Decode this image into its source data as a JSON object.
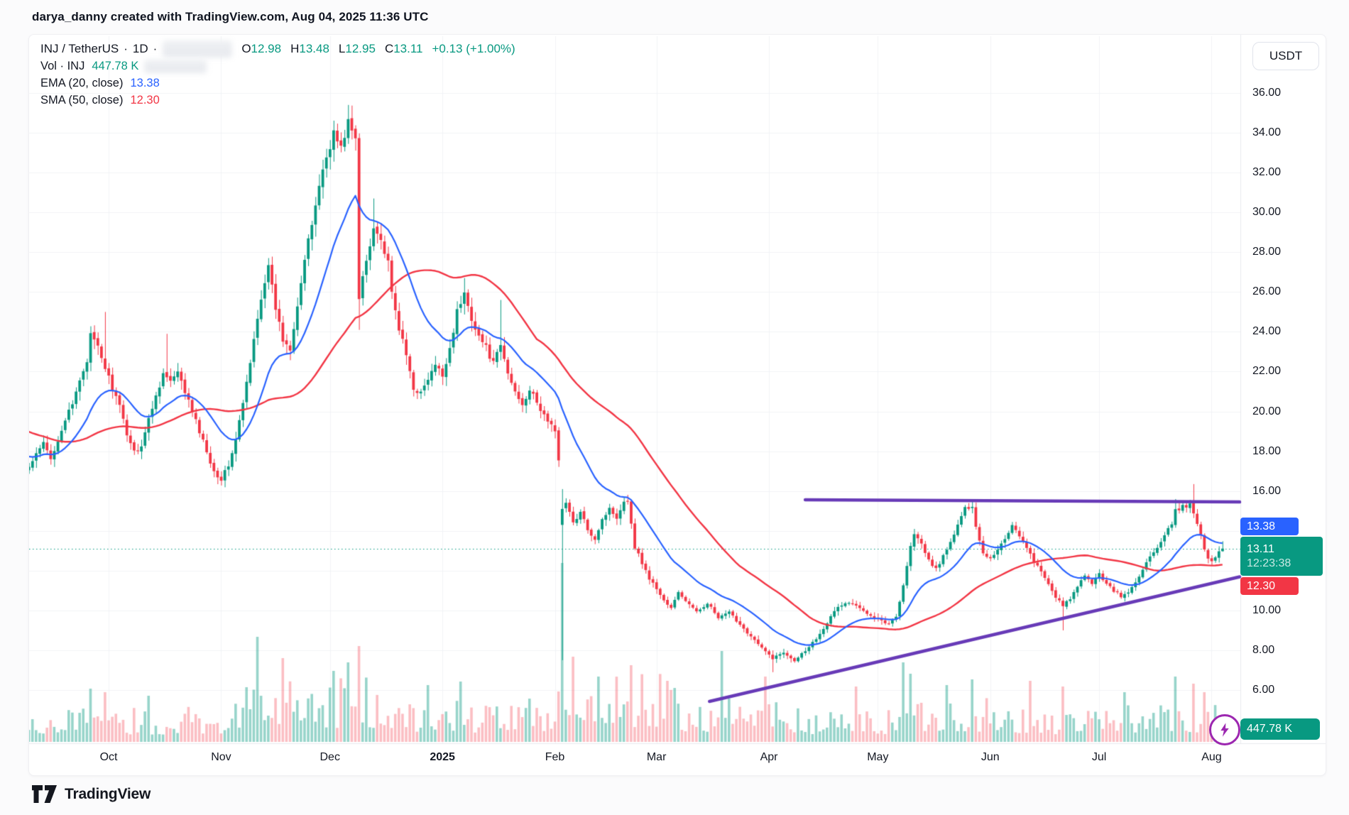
{
  "header": {
    "attribution": "darya_danny created with TradingView.com, Aug 04, 2025 11:36 UTC"
  },
  "legend": {
    "symbol": "INJ / TetherUS",
    "separator": "·",
    "interval": "1D",
    "ohlc": {
      "o_label": "O",
      "o": "12.98",
      "h_label": "H",
      "h": "13.48",
      "l_label": "L",
      "l": "12.95",
      "c_label": "C",
      "c": "13.11",
      "change": "+0.13 (+1.00%)"
    },
    "volume_row": {
      "label": "Vol · INJ",
      "value": "447.78 K"
    },
    "ema_row": {
      "label": "EMA (20, close)",
      "value": "13.38"
    },
    "sma_row": {
      "label": "SMA (50, close)",
      "value": "12.30"
    }
  },
  "price_scale": {
    "currency": "USDT",
    "labels": [
      {
        "text": "36.00",
        "price": 36
      },
      {
        "text": "34.00",
        "price": 34
      },
      {
        "text": "32.00",
        "price": 32
      },
      {
        "text": "30.00",
        "price": 30
      },
      {
        "text": "28.00",
        "price": 28
      },
      {
        "text": "26.00",
        "price": 26
      },
      {
        "text": "24.00",
        "price": 24
      },
      {
        "text": "22.00",
        "price": 22
      },
      {
        "text": "20.00",
        "price": 20
      },
      {
        "text": "18.00",
        "price": 18
      },
      {
        "text": "16.00",
        "price": 16
      },
      {
        "text": "10.00",
        "price": 10
      },
      {
        "text": "8.00",
        "price": 8
      },
      {
        "text": "6.00",
        "price": 6
      }
    ],
    "badges": {
      "ema": "13.38",
      "last_price": "13.11",
      "countdown": "12:23:38",
      "sma": "12.30",
      "volume": "447.78 K"
    }
  },
  "time_scale": {
    "labels": [
      {
        "text": "Oct",
        "day": 22
      },
      {
        "text": "Nov",
        "day": 53
      },
      {
        "text": "Dec",
        "day": 83
      },
      {
        "text": "2025",
        "day": 114,
        "bold": true
      },
      {
        "text": "Feb",
        "day": 145
      },
      {
        "text": "Mar",
        "day": 173
      },
      {
        "text": "Apr",
        "day": 204
      },
      {
        "text": "May",
        "day": 234
      },
      {
        "text": "Jun",
        "day": 265
      },
      {
        "text": "Jul",
        "day": 295
      },
      {
        "text": "Aug",
        "day": 326
      }
    ]
  },
  "footer": {
    "brand": "TradingView"
  },
  "colors": {
    "up": "#089981",
    "down": "#f23645",
    "vol_up": "rgba(8,153,129,0.42)",
    "vol_down": "rgba(242,54,69,0.32)",
    "ema": "#2962ff",
    "sma": "#f23645",
    "trendline": "#673ab7",
    "flash_icon": "#9c27b0",
    "grid": "#f2f3f6",
    "separator": "#e8eaee",
    "current_price_line": "#089981"
  },
  "chart_data": {
    "type": "candlestick+volume",
    "symbol": "INJ/TetherUS",
    "interval": "1D",
    "date_range": "2024-09-09 to 2025-08-04",
    "price_axis": {
      "min": 4,
      "max": 36.5,
      "tick_step": 2,
      "visible_ticks": [
        36,
        34,
        32,
        30,
        28,
        26,
        24,
        22,
        20,
        18,
        16,
        10,
        8,
        6
      ]
    },
    "last_candle": {
      "open": 12.98,
      "high": 13.48,
      "low": 12.95,
      "close": 13.11,
      "change": "+0.13 (+1.00%)"
    },
    "current_price": 13.11,
    "volume_display": "447.78 K",
    "indicators": [
      {
        "name": "EMA",
        "length": 20,
        "source": "close",
        "value": 13.38
      },
      {
        "name": "SMA",
        "length": 50,
        "source": "close",
        "value": 12.3
      }
    ],
    "close_anchors": [
      [
        0,
        17.2
      ],
      [
        2,
        17.8
      ],
      [
        4,
        18.4
      ],
      [
        6,
        17.6
      ],
      [
        8,
        18.6
      ],
      [
        10,
        19.6
      ],
      [
        12,
        20.3
      ],
      [
        14,
        21.6
      ],
      [
        16,
        22.6
      ],
      [
        17,
        23.8
      ],
      [
        19,
        23.2
      ],
      [
        21,
        22.2
      ],
      [
        23,
        21.2
      ],
      [
        25,
        20.2
      ],
      [
        27,
        18.9
      ],
      [
        29,
        18.0
      ],
      [
        31,
        18.3
      ],
      [
        33,
        19.6
      ],
      [
        35,
        20.8
      ],
      [
        37,
        21.9
      ],
      [
        39,
        21.5
      ],
      [
        41,
        21.9
      ],
      [
        43,
        21.0
      ],
      [
        45,
        20.0
      ],
      [
        47,
        19.0
      ],
      [
        49,
        18.0
      ],
      [
        51,
        17.0
      ],
      [
        53,
        16.6
      ],
      [
        55,
        17.3
      ],
      [
        57,
        18.6
      ],
      [
        59,
        20.4
      ],
      [
        61,
        22.4
      ],
      [
        63,
        24.8
      ],
      [
        65,
        26.6
      ],
      [
        66,
        27.2
      ],
      [
        68,
        25.2
      ],
      [
        70,
        23.6
      ],
      [
        72,
        23.2
      ],
      [
        74,
        25.4
      ],
      [
        76,
        27.6
      ],
      [
        78,
        29.4
      ],
      [
        80,
        31.4
      ],
      [
        82,
        32.8
      ],
      [
        84,
        34.0
      ],
      [
        86,
        33.2
      ],
      [
        88,
        34.6
      ],
      [
        90,
        33.6
      ],
      [
        91,
        25.6
      ],
      [
        92,
        26.8
      ],
      [
        94,
        28.4
      ],
      [
        95,
        29.4
      ],
      [
        97,
        28.6
      ],
      [
        99,
        27.4
      ],
      [
        100,
        25.9
      ],
      [
        102,
        24.2
      ],
      [
        104,
        22.8
      ],
      [
        106,
        21.2
      ],
      [
        108,
        20.9
      ],
      [
        110,
        21.6
      ],
      [
        112,
        22.3
      ],
      [
        114,
        21.8
      ],
      [
        116,
        23.2
      ],
      [
        118,
        25.0
      ],
      [
        120,
        25.9
      ],
      [
        122,
        24.7
      ],
      [
        124,
        23.8
      ],
      [
        126,
        23.2
      ],
      [
        128,
        22.4
      ],
      [
        130,
        23.3
      ],
      [
        132,
        21.9
      ],
      [
        134,
        21.0
      ],
      [
        136,
        20.4
      ],
      [
        138,
        21.1
      ],
      [
        140,
        20.4
      ],
      [
        142,
        19.8
      ],
      [
        144,
        19.3
      ],
      [
        145,
        18.9
      ],
      [
        146,
        17.6
      ],
      [
        147,
        15.1
      ],
      [
        148,
        15.4
      ],
      [
        150,
        14.4
      ],
      [
        152,
        14.9
      ],
      [
        154,
        14.1
      ],
      [
        156,
        13.6
      ],
      [
        158,
        14.6
      ],
      [
        160,
        15.1
      ],
      [
        162,
        14.7
      ],
      [
        164,
        15.5
      ],
      [
        165,
        15.6
      ],
      [
        166,
        14.3
      ],
      [
        167,
        13.2
      ],
      [
        169,
        12.4
      ],
      [
        171,
        11.6
      ],
      [
        173,
        11.1
      ],
      [
        175,
        10.5
      ],
      [
        177,
        10.1
      ],
      [
        179,
        10.9
      ],
      [
        181,
        10.5
      ],
      [
        184,
        9.9
      ],
      [
        187,
        10.4
      ],
      [
        190,
        9.6
      ],
      [
        193,
        9.9
      ],
      [
        196,
        9.3
      ],
      [
        199,
        8.7
      ],
      [
        202,
        8.1
      ],
      [
        205,
        7.6
      ],
      [
        208,
        7.9
      ],
      [
        211,
        7.5
      ],
      [
        214,
        8.0
      ],
      [
        217,
        8.6
      ],
      [
        220,
        9.4
      ],
      [
        223,
        10.2
      ],
      [
        226,
        10.4
      ],
      [
        229,
        10.1
      ],
      [
        232,
        9.8
      ],
      [
        235,
        9.5
      ],
      [
        237,
        9.3
      ],
      [
        239,
        9.7
      ],
      [
        241,
        11.3
      ],
      [
        243,
        13.2
      ],
      [
        244,
        13.9
      ],
      [
        246,
        13.3
      ],
      [
        248,
        12.5
      ],
      [
        250,
        12.1
      ],
      [
        252,
        12.7
      ],
      [
        254,
        13.4
      ],
      [
        256,
        14.3
      ],
      [
        258,
        15.1
      ],
      [
        260,
        15.3
      ],
      [
        261,
        14.2
      ],
      [
        263,
        12.9
      ],
      [
        265,
        12.6
      ],
      [
        267,
        13.1
      ],
      [
        269,
        13.6
      ],
      [
        271,
        14.3
      ],
      [
        273,
        13.8
      ],
      [
        275,
        13.1
      ],
      [
        277,
        12.5
      ],
      [
        279,
        11.9
      ],
      [
        281,
        11.3
      ],
      [
        283,
        10.7
      ],
      [
        285,
        10.2
      ],
      [
        287,
        10.6
      ],
      [
        289,
        11.2
      ],
      [
        291,
        11.7
      ],
      [
        293,
        11.4
      ],
      [
        295,
        11.8
      ],
      [
        297,
        11.4
      ],
      [
        299,
        11.0
      ],
      [
        301,
        10.7
      ],
      [
        303,
        10.9
      ],
      [
        305,
        11.4
      ],
      [
        307,
        12.1
      ],
      [
        309,
        12.7
      ],
      [
        311,
        13.1
      ],
      [
        313,
        13.7
      ],
      [
        315,
        14.4
      ],
      [
        316,
        15.0
      ],
      [
        318,
        15.2
      ],
      [
        320,
        15.3
      ],
      [
        321,
        14.9
      ],
      [
        322,
        14.4
      ],
      [
        323,
        13.9
      ],
      [
        324,
        13.1
      ],
      [
        325,
        12.6
      ],
      [
        326,
        12.4
      ],
      [
        327,
        12.7
      ],
      [
        328,
        13.0
      ],
      [
        329,
        13.11
      ]
    ],
    "candle_overrides": {
      "21": {
        "high": 25.0
      },
      "38": {
        "high": 23.9
      },
      "88": {
        "high": 35.4
      },
      "91": {
        "low": 24.1
      },
      "95": {
        "high": 30.7
      },
      "120": {
        "high": 26.7
      },
      "130": {
        "high": 25.6
      },
      "147": {
        "open": 14.3,
        "close": 15.1,
        "high": 16.1,
        "low": 7.5
      },
      "205": {
        "low": 6.9
      },
      "260": {
        "high": 15.55
      },
      "285": {
        "low": 9.0
      },
      "316": {
        "high": 15.6
      },
      "321": {
        "high": 16.35
      },
      "329": {
        "open": 12.98,
        "high": 13.48,
        "low": 12.95,
        "close": 13.11
      }
    },
    "volume_spikes": {
      "17": 75,
      "21": 70,
      "33": 65,
      "63": 148,
      "70": 118,
      "84": 100,
      "88": 112,
      "91": 135,
      "110": 80,
      "119": 85,
      "147": 252,
      "150": 120,
      "157": 92,
      "166": 108,
      "176": 86,
      "191": 128,
      "203": 92,
      "228": 78,
      "241": 112,
      "243": 96,
      "253": 80,
      "260": 88,
      "276": 86,
      "285": 78,
      "302": 70,
      "316": 92,
      "321": 82,
      "324": 70
    },
    "trendlines": [
      {
        "name": "resistance",
        "d1": 214,
        "p1": 15.56,
        "d2": 334,
        "p2": 15.45
      },
      {
        "name": "support",
        "d1": 187.6,
        "p1": 5.43,
        "d2": 334,
        "p2": 11.69
      }
    ],
    "seed": 42
  }
}
